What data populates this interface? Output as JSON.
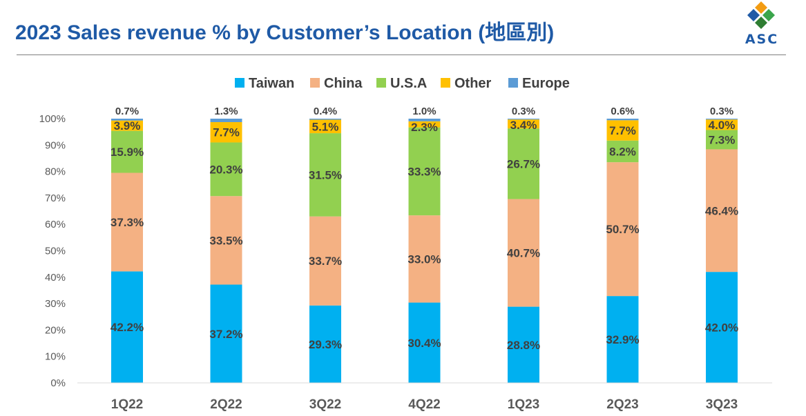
{
  "header": {
    "title": "2023 Sales revenue % by Customer’s Location (地區別)",
    "logo_text": "ASC"
  },
  "colors": {
    "title": "#1f5aa6",
    "logo_orange": "#f39c12",
    "logo_blue": "#1f5aa6",
    "logo_green": "#3aa54b"
  },
  "chart_data": {
    "type": "bar",
    "stacked": true,
    "percent_stacked": true,
    "categories": [
      "1Q22",
      "2Q22",
      "3Q22",
      "4Q22",
      "1Q23",
      "2Q23",
      "3Q23"
    ],
    "ylim": [
      0,
      100
    ],
    "yticks": [
      "0%",
      "10%",
      "20%",
      "30%",
      "40%",
      "50%",
      "60%",
      "70%",
      "80%",
      "90%",
      "100%"
    ],
    "legend_position": "top",
    "grid": false,
    "series": [
      {
        "name": "Taiwan",
        "color": "#00b0f0",
        "values": [
          42.2,
          37.2,
          29.3,
          30.4,
          28.8,
          32.9,
          42.0
        ]
      },
      {
        "name": "China",
        "color": "#f4b183",
        "values": [
          37.3,
          33.5,
          33.7,
          33.0,
          40.7,
          50.7,
          46.4
        ]
      },
      {
        "name": "U.S.A",
        "color": "#92d050",
        "values": [
          15.9,
          20.3,
          31.5,
          33.3,
          26.7,
          8.2,
          7.3
        ]
      },
      {
        "name": "Other",
        "color": "#ffc000",
        "values": [
          3.9,
          7.7,
          5.1,
          2.3,
          3.4,
          7.7,
          4.0
        ]
      },
      {
        "name": "Europe",
        "color": "#5b9bd5",
        "values": [
          0.7,
          1.3,
          0.4,
          1.0,
          0.3,
          0.6,
          0.3
        ]
      }
    ]
  }
}
